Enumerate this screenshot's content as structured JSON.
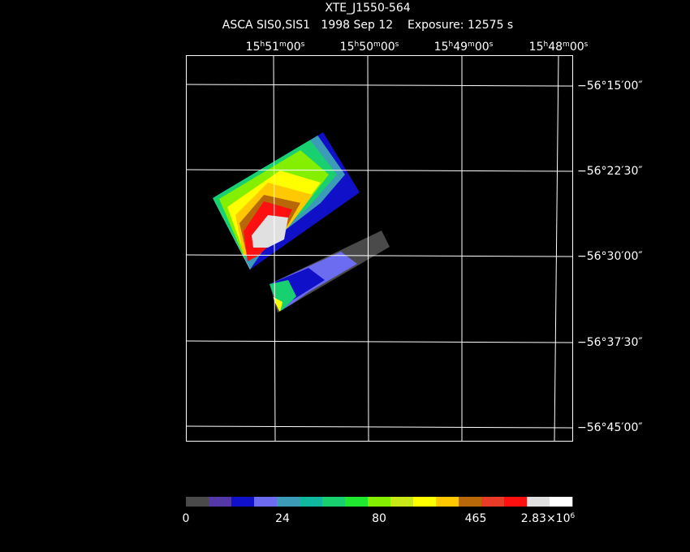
{
  "header": {
    "title": "XTE_J1550-564",
    "subtitle": "ASCA SIS0,SIS1   1998 Sep 12    Exposure: 12575 s"
  },
  "ra_labels": [
    [
      "15",
      "h",
      "51",
      "m",
      "00",
      "s"
    ],
    [
      "15",
      "h",
      "50",
      "m",
      "00",
      "s"
    ],
    [
      "15",
      "h",
      "49",
      "m",
      "00",
      "s"
    ],
    [
      "15",
      "h",
      "48",
      "m",
      "00",
      "s"
    ]
  ],
  "dec_labels": [
    "−56°15′00″",
    "−56°22′30″",
    "−56°30′00″",
    "−56°37′30″",
    "−56°45′00″"
  ],
  "colorbar": {
    "colors": [
      "#4a4a4a",
      "#5438a8",
      "#1010c8",
      "#6c6cf0",
      "#3c9cb8",
      "#10b8a0",
      "#18d070",
      "#20e830",
      "#84f000",
      "#c8e818",
      "#ffff00",
      "#ffc800",
      "#b86808",
      "#e83c28",
      "#ff1010",
      "#e0e0e0",
      "#ffffff"
    ],
    "labels": [
      [
        "0"
      ],
      [
        "24"
      ],
      [
        "80"
      ],
      [
        "465"
      ],
      [
        "2.83×10",
        "6"
      ]
    ]
  }
}
